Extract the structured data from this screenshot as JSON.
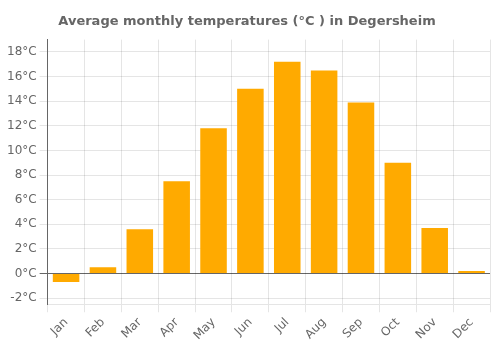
{
  "chart_data": {
    "type": "bar",
    "title": "Average monthly temperatures (°C ) in Degersheim",
    "categories": [
      "Jan",
      "Feb",
      "Mar",
      "Apr",
      "May",
      "Jun",
      "Jul",
      "Aug",
      "Sep",
      "Oct",
      "Nov",
      "Dec"
    ],
    "values": [
      -0.7,
      0.5,
      3.6,
      7.5,
      11.8,
      15.0,
      17.2,
      16.5,
      13.9,
      9.0,
      3.7,
      0.2
    ],
    "color": "#FFAA00",
    "ylim": [
      -2.5,
      19.0
    ],
    "yticks": [
      {
        "value": -2,
        "label": "-2°C"
      },
      {
        "value": 0,
        "label": "0°C"
      },
      {
        "value": 2,
        "label": "2°C"
      },
      {
        "value": 4,
        "label": "4°C"
      },
      {
        "value": 6,
        "label": "6°C"
      },
      {
        "value": 8,
        "label": "8°C"
      },
      {
        "value": 10,
        "label": "10°C"
      },
      {
        "value": 12,
        "label": "12°C"
      },
      {
        "value": 14,
        "label": "14°C"
      },
      {
        "value": 16,
        "label": "16°C"
      },
      {
        "value": 18,
        "label": "18°C"
      }
    ],
    "grid": true
  }
}
